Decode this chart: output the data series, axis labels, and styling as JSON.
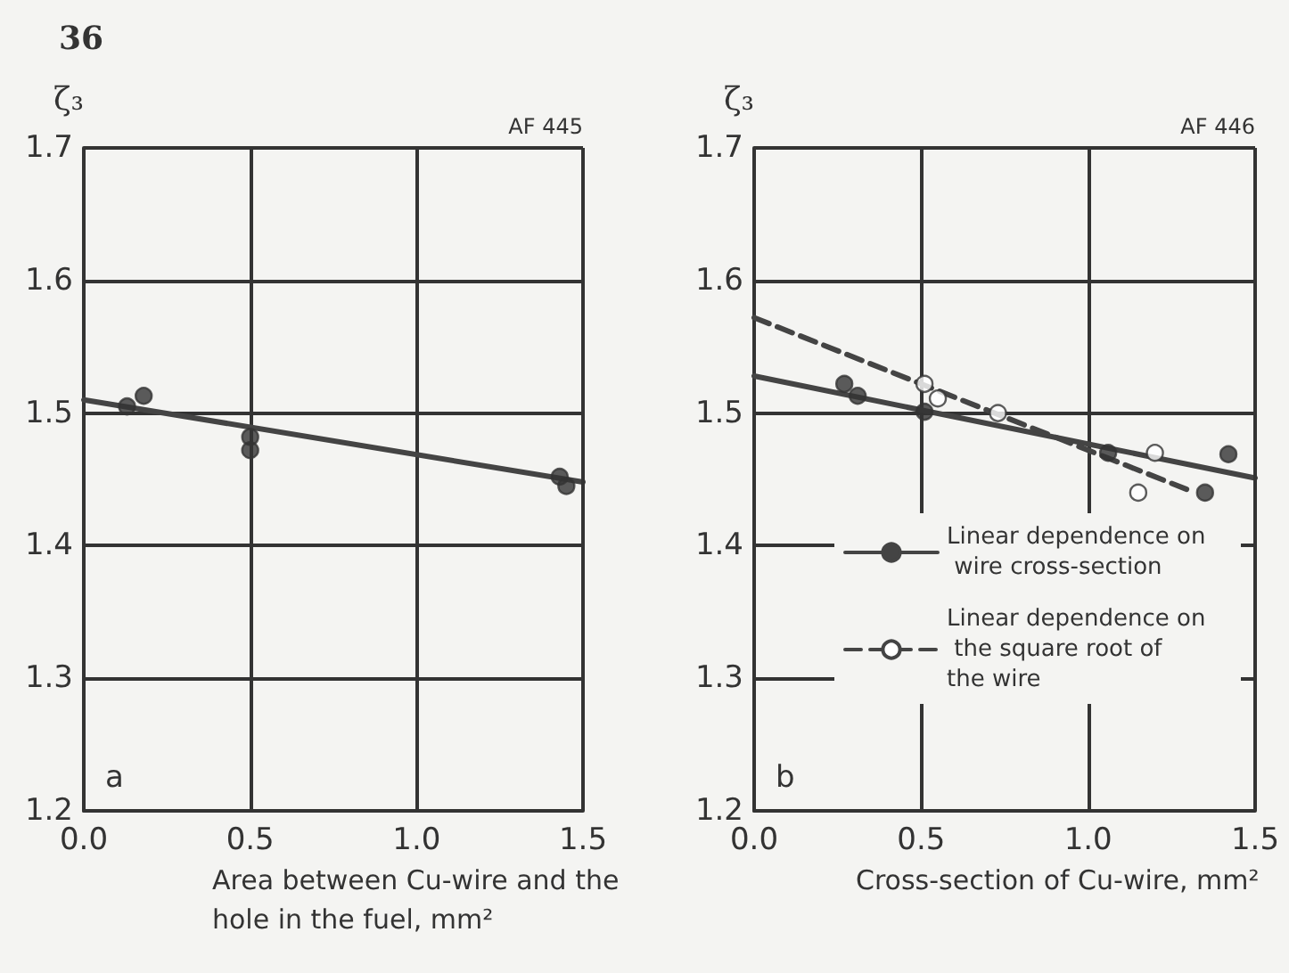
{
  "chart_data": [
    {
      "type": "scatter",
      "title": "36",
      "xlabel": "Area between Cu-wire and the hole in the fuel, mm²",
      "ylabel": "ζ₃",
      "annotations": [
        "AF 445",
        "a"
      ],
      "xlim": [
        0,
        1.5
      ],
      "xticks": [
        {
          "value": 0,
          "label": "0.0"
        },
        {
          "value": 0.5,
          "label": "0.5"
        },
        {
          "value": 1,
          "label": "1.0"
        },
        {
          "value": 1.5,
          "label": "1.5"
        }
      ],
      "ylim": [
        1.2,
        1.7
      ],
      "yticks": [
        1.2,
        1.3,
        1.4,
        1.5,
        1.6,
        1.7
      ],
      "grid": true,
      "legend": false,
      "series": [
        {
          "marker": "circle",
          "color": "#333333",
          "x": [
            0.13,
            0.18,
            0.5,
            0.5,
            1.43,
            1.45
          ],
          "values": [
            1.505,
            1.513,
            1.482,
            1.472,
            1.452,
            1.445
          ]
        },
        {
          "type": "line",
          "marker": "none",
          "color": "#444444",
          "line_style": "solid",
          "x": [
            0,
            1.5
          ],
          "values": [
            1.51,
            1.448
          ]
        }
      ]
    },
    {
      "type": "scatter",
      "xlabel": "Cross-section of Cu-wire, mm²",
      "ylabel": "ζ₃",
      "annotations": [
        "AF 446",
        "b"
      ],
      "xlim": [
        0,
        1.5
      ],
      "xticks": [
        {
          "value": 0,
          "label": "0.0"
        },
        {
          "value": 0.5,
          "label": "0.5"
        },
        {
          "value": 1,
          "label": "1.0"
        },
        {
          "value": 1.5,
          "label": "1.5"
        }
      ],
      "ylim": [
        1.2,
        1.7
      ],
      "yticks": [
        1.2,
        1.3,
        1.4,
        1.5,
        1.6,
        1.7
      ],
      "grid": true,
      "legend": "bottom right",
      "series": [
        {
          "marker": "circle",
          "color": "#333333",
          "x": [
            0.27,
            0.31,
            0.51,
            1.06,
            1.35,
            1.42
          ],
          "values": [
            1.522,
            1.513,
            1.501,
            1.47,
            1.44,
            1.469
          ]
        },
        {
          "marker": "circle",
          "color": "#ffffff",
          "x": [
            0.51,
            0.55,
            0.73,
            1.15,
            1.2
          ],
          "values": [
            1.522,
            1.511,
            1.5,
            1.44,
            1.47
          ]
        },
        {
          "type": "line",
          "name": "Linear dependence on wire cross-section",
          "marker": "none",
          "color": "#444444",
          "line_style": "solid",
          "x": [
            0,
            1.5
          ],
          "values": [
            1.528,
            1.451
          ]
        },
        {
          "type": "line",
          "name": "Linear dependence on the square root of the wire",
          "marker": "none",
          "color": "#444444",
          "line_style": "dashed",
          "x": [
            0,
            1.3
          ],
          "values": [
            1.572,
            1.442
          ]
        }
      ]
    }
  ]
}
